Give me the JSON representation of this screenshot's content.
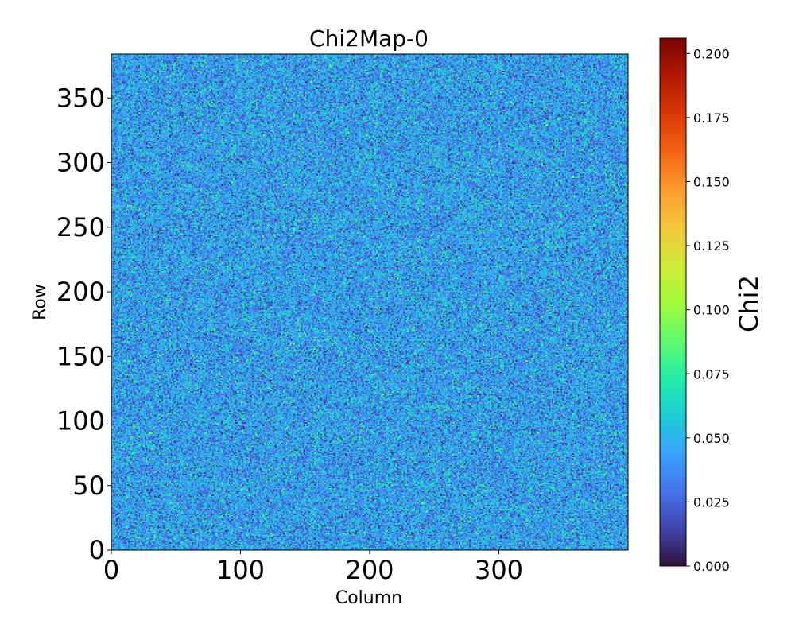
{
  "chart_data": {
    "type": "heatmap",
    "title": "Chi2Map-0",
    "xlabel": "Column",
    "ylabel": "Row",
    "xlim": [
      0,
      400
    ],
    "ylim": [
      0,
      384
    ],
    "x_ticks": [
      0,
      100,
      200,
      300
    ],
    "y_ticks": [
      0,
      50,
      100,
      150,
      200,
      250,
      300,
      350
    ],
    "colorbar": {
      "label": "Chi2",
      "min": 0.0,
      "max": 0.206,
      "ticks": [
        "0.000",
        "0.025",
        "0.050",
        "0.075",
        "0.100",
        "0.125",
        "0.150",
        "0.175",
        "0.200"
      ],
      "colormap": "turbo"
    },
    "value_distribution": {
      "typical_min": 0.005,
      "typical_max": 0.1,
      "mean": 0.035
    },
    "grid": false
  },
  "colors": {
    "cmap_stops": [
      "#30123b",
      "#4145ab",
      "#4675ed",
      "#39a2fc",
      "#1bcfd4",
      "#24eca6",
      "#61fc6c",
      "#a4fc3b",
      "#d1e834",
      "#f3c63a",
      "#fe9b2d",
      "#f36315",
      "#d93806",
      "#b11901",
      "#7a0402"
    ]
  }
}
